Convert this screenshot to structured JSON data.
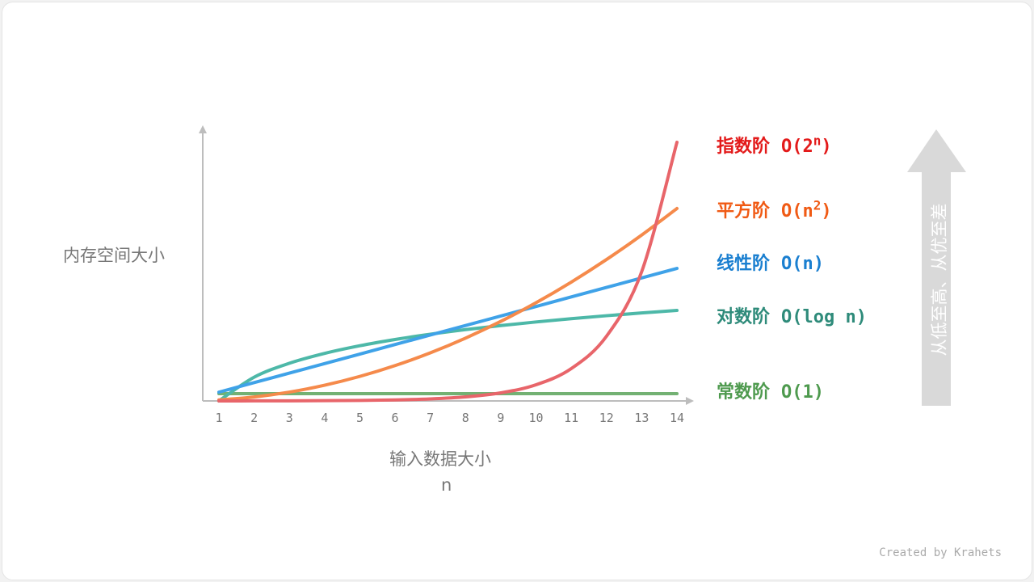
{
  "chart_data": {
    "type": "line",
    "xlabel": "输入数据大小",
    "xlabel_sub": "n",
    "ylabel": "内存空间大小",
    "x": [
      1,
      2,
      3,
      4,
      5,
      6,
      7,
      8,
      9,
      10,
      11,
      12,
      13,
      14
    ],
    "xlim": [
      1,
      14
    ],
    "ylim": [
      0,
      100
    ],
    "grid": false,
    "series": [
      {
        "name": "指数阶",
        "notation": "O(2",
        "sup": "n",
        "close": ")",
        "line_color": "#e8656a",
        "label_color": "#e31a1a",
        "values": [
          0.012,
          0.024,
          0.049,
          0.098,
          0.195,
          0.39,
          0.78,
          1.56,
          3.13,
          6.25,
          12.5,
          25,
          50,
          100
        ]
      },
      {
        "name": "平方阶",
        "notation": "O(n",
        "sup": "2",
        "close": ")",
        "line_color": "#f58a4b",
        "label_color": "#f05a14",
        "values": [
          0.38,
          1.52,
          3.42,
          6.07,
          9.49,
          13.67,
          18.6,
          24.29,
          30.75,
          37.96,
          45.93,
          54.66,
          64.15,
          74.4
        ]
      },
      {
        "name": "线性阶",
        "notation": "O(n)",
        "sup": "",
        "close": "",
        "line_color": "#3fa2e8",
        "label_color": "#1a7fd0",
        "values": [
          3.4,
          7.08,
          10.76,
          14.44,
          18.12,
          21.8,
          25.48,
          29.16,
          32.84,
          36.52,
          40.2,
          43.88,
          47.56,
          51.24
        ]
      },
      {
        "name": "对数阶",
        "notation": "O(log n)",
        "sup": "",
        "close": "",
        "line_color": "#4db8a8",
        "label_color": "#2e8b7a",
        "values": [
          0,
          9.19,
          14.57,
          18.38,
          21.34,
          23.76,
          25.8,
          27.57,
          29.14,
          30.53,
          31.8,
          32.95,
          34.01,
          35
        ]
      },
      {
        "name": "常数阶",
        "notation": "O(1)",
        "sup": "",
        "close": "",
        "line_color": "#73b173",
        "label_color": "#4e9a4e",
        "values": [
          2.8,
          2.8,
          2.8,
          2.8,
          2.8,
          2.8,
          2.8,
          2.8,
          2.8,
          2.8,
          2.8,
          2.8,
          2.8,
          2.8
        ]
      }
    ],
    "legend": "right"
  },
  "side_arrow": {
    "text": "从低至高、从优至差",
    "color": "#d9d9d9"
  },
  "credit": "Created by Krahets"
}
